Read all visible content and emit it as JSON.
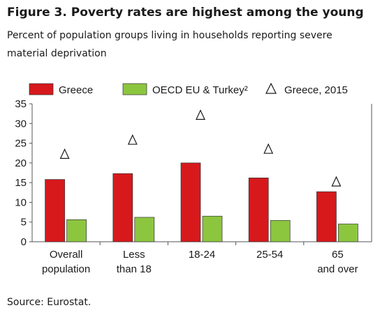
{
  "title": "Figure 3. Poverty rates are highest among the young",
  "subtitle": "Percent of population groups living in households reporting severe material deprivation",
  "source": "Source: Eurostat.",
  "colors": {
    "greece": "#d7191c",
    "oecd": "#8cc63f",
    "axis": "#555555"
  },
  "chart_data": {
    "type": "bar",
    "categories": [
      [
        "Overall",
        "population"
      ],
      [
        "Less",
        "than 18"
      ],
      [
        "18-24"
      ],
      [
        "25-54"
      ],
      [
        "65",
        "and over"
      ]
    ],
    "series": [
      {
        "name": "Greece",
        "values": [
          15.8,
          17.3,
          20.0,
          16.2,
          12.7
        ],
        "color": "#d7191c",
        "marker": "bar"
      },
      {
        "name": "OECD EU & Turkey²",
        "values": [
          5.6,
          6.2,
          6.5,
          5.4,
          4.5
        ],
        "color": "#8cc63f",
        "marker": "bar"
      },
      {
        "name": "Greece, 2015",
        "values": [
          22.2,
          25.8,
          32.1,
          23.5,
          15.2
        ],
        "color": "#1a1a1a",
        "marker": "triangle"
      }
    ],
    "yticks": [
      0,
      5,
      10,
      15,
      20,
      25,
      30,
      35
    ],
    "ylim": [
      0,
      35
    ],
    "grid": false,
    "legend_position": "top"
  }
}
